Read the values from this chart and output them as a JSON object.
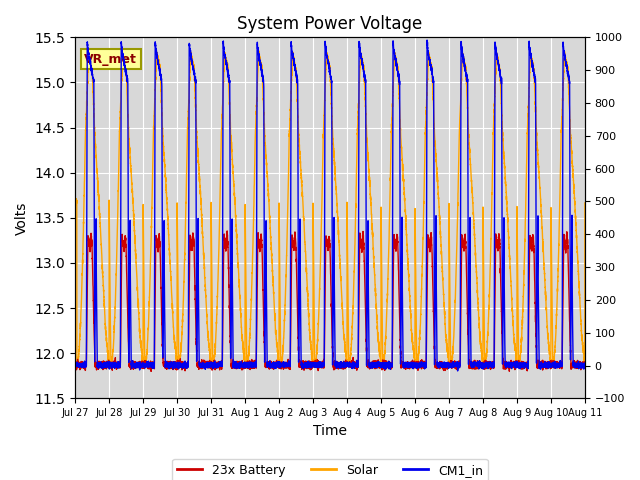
{
  "title": "System Power Voltage",
  "xlabel": "Time",
  "ylabel": "Volts",
  "ylim_left": [
    11.5,
    15.5
  ],
  "ylim_right": [
    -100,
    1000
  ],
  "yticks_left": [
    11.5,
    12.0,
    12.5,
    13.0,
    13.5,
    14.0,
    14.5,
    15.0,
    15.5
  ],
  "yticks_right": [
    -100,
    0,
    100,
    200,
    300,
    400,
    500,
    600,
    700,
    800,
    900,
    1000
  ],
  "annotation_text": "VR_met",
  "annotation_color": "#8B0000",
  "annotation_bg": "#FFFF99",
  "annotation_border": "#999900",
  "bg_color": "#D8D8D8",
  "line_battery": "#CC0000",
  "line_solar": "#FFA500",
  "line_cm1": "#0000EE",
  "legend_labels": [
    "23x Battery",
    "Solar",
    "CM1_in"
  ],
  "x_tick_labels": [
    "Jul 27",
    "Jul 28",
    "Jul 29",
    "Jul 30",
    "Jul 31",
    "Aug 1",
    "Aug 2",
    "Aug 3",
    "Aug 4",
    "Aug 5",
    "Aug 6",
    "Aug 7",
    "Aug 8",
    "Aug 9",
    "Aug 10",
    "Aug 11"
  ],
  "n_days": 15,
  "points_per_day": 500
}
